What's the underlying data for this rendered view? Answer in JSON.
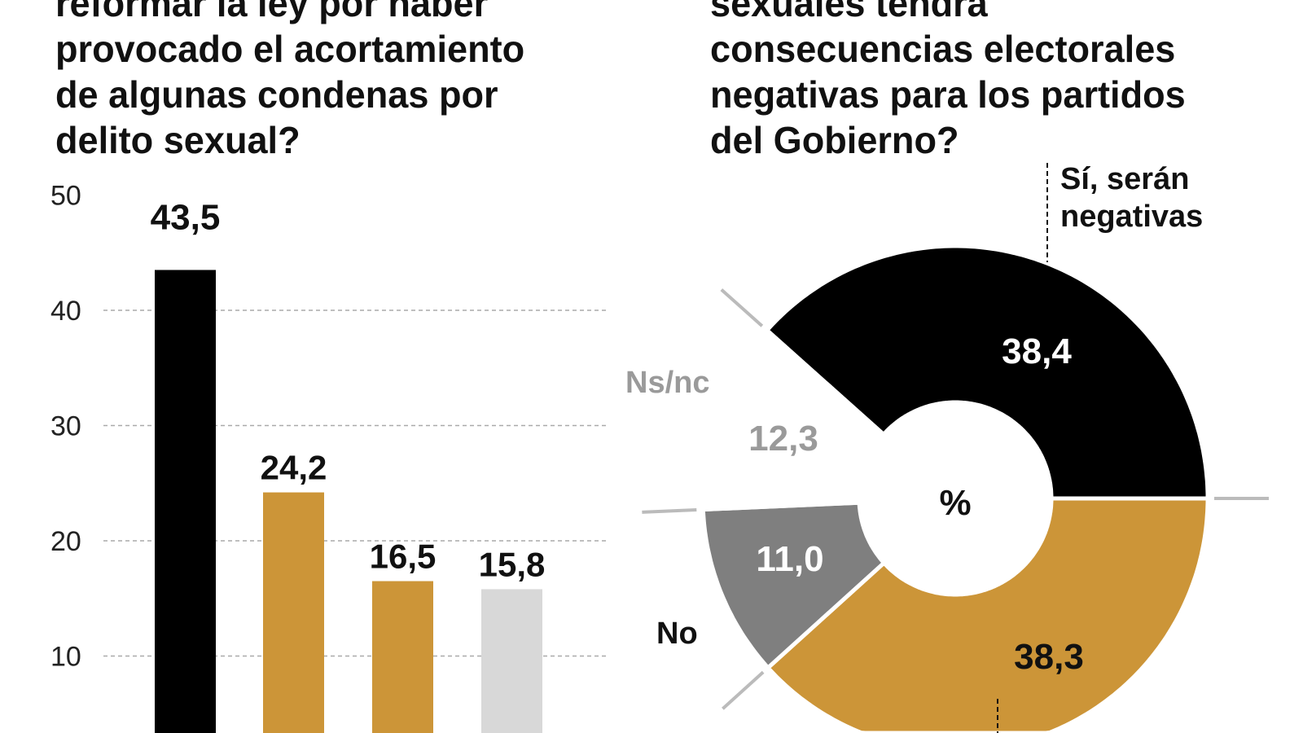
{
  "left_title_lines": [
    "reformar la ley por haber",
    "provocado el acortamiento",
    "de algunas condenas por",
    "delito sexual?"
  ],
  "right_title_lines": [
    "sexuales tendrá",
    "consecuencias electorales",
    "negativas para los partidos",
    "del Gobierno?"
  ],
  "colors": {
    "black": "#000000",
    "gold": "#cc9538",
    "gray": "#7f7f7f",
    "light_gray": "#d8d8d8",
    "ns_nc_text": "#9a9a9a"
  },
  "chart_data": [
    {
      "type": "bar",
      "values": [
        43.5,
        24.2,
        16.5,
        15.8
      ],
      "value_labels": [
        "43,5",
        "24,2",
        "16,5",
        "15,8"
      ],
      "bar_colors": [
        "#000000",
        "#cc9538",
        "#cc9538",
        "#d8d8d8"
      ],
      "yticks": [
        "10",
        "20",
        "30",
        "40",
        "50"
      ],
      "ytick_values": [
        10,
        20,
        30,
        40,
        50
      ],
      "ylim": [
        0,
        50
      ],
      "grid": true
    },
    {
      "type": "pie",
      "donut": true,
      "center_label": "%",
      "slices": [
        {
          "name": "Sí, serán negativas",
          "value": 38.4,
          "label": "38,4",
          "color": "#000000",
          "label_color": "#ffffff"
        },
        {
          "name": "",
          "value": 38.3,
          "label": "38,3",
          "color": "#cc9538",
          "label_color": "#111111"
        },
        {
          "name": "No",
          "value": 11.0,
          "label": "11,0",
          "color": "#7f7f7f",
          "label_color": "#ffffff"
        },
        {
          "name": "Ns/nc",
          "value": 12.3,
          "label": "12,3",
          "color": "#ffffff",
          "label_color": "#9a9a9a"
        }
      ],
      "category_labels": {
        "yes_line1": "Sí, serán",
        "yes_line2": "negativas",
        "no": "No",
        "nsnc": "Ns/nc"
      }
    }
  ]
}
